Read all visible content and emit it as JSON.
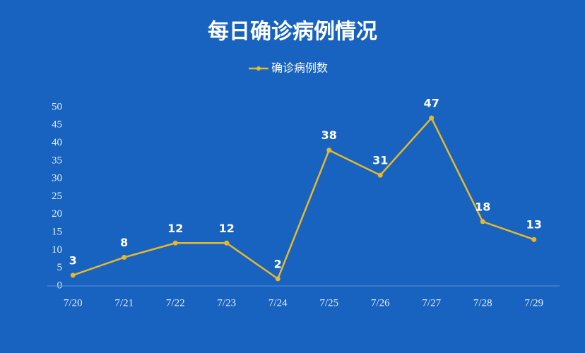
{
  "chart_data": {
    "type": "line",
    "title": "每日确诊病例情况",
    "categories": [
      "7/20",
      "7/21",
      "7/22",
      "7/23",
      "7/24",
      "7/25",
      "7/26",
      "7/27",
      "7/28",
      "7/29"
    ],
    "series": [
      {
        "name": "确诊病例数",
        "color": "#e8b82a",
        "values": [
          3,
          8,
          12,
          12,
          2,
          38,
          31,
          47,
          18,
          13
        ]
      }
    ],
    "ylim": [
      0,
      50
    ],
    "yticks": [
      0,
      5,
      10,
      15,
      20,
      25,
      30,
      35,
      40,
      45,
      50
    ],
    "legend": "top"
  }
}
